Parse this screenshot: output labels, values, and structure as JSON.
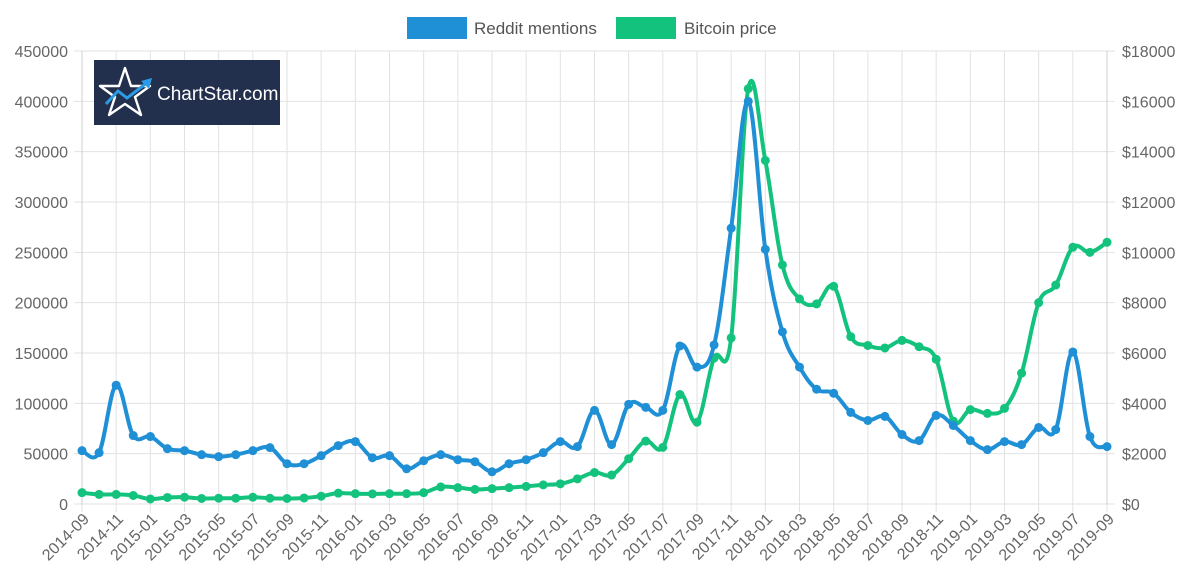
{
  "chart_data": {
    "type": "line",
    "x": [
      "2014-09",
      "2014-10",
      "2014-11",
      "2014-12",
      "2015-01",
      "2015-02",
      "2015-03",
      "2015-04",
      "2015-05",
      "2015-06",
      "2015-07",
      "2015-08",
      "2015-09",
      "2015-10",
      "2015-11",
      "2015-12",
      "2016-01",
      "2016-02",
      "2016-03",
      "2016-04",
      "2016-05",
      "2016-06",
      "2016-07",
      "2016-08",
      "2016-09",
      "2016-10",
      "2016-11",
      "2016-12",
      "2017-01",
      "2017-02",
      "2017-03",
      "2017-04",
      "2017-05",
      "2017-06",
      "2017-07",
      "2017-08",
      "2017-09",
      "2017-10",
      "2017-11",
      "2017-12",
      "2018-01",
      "2018-02",
      "2018-03",
      "2018-04",
      "2018-05",
      "2018-06",
      "2018-07",
      "2018-08",
      "2018-09",
      "2018-10",
      "2018-11",
      "2018-12",
      "2019-01",
      "2019-02",
      "2019-03",
      "2019-04",
      "2019-05",
      "2019-06",
      "2019-07",
      "2019-08",
      "2019-09"
    ],
    "x_tick_labels": [
      "2014-09",
      "2014-11",
      "2015-01",
      "2015-03",
      "2015-05",
      "2015-07",
      "2015-09",
      "2015-11",
      "2016-01",
      "2016-03",
      "2016-05",
      "2016-07",
      "2016-09",
      "2016-11",
      "2017-01",
      "2017-03",
      "2017-05",
      "2017-07",
      "2017-09",
      "2017-11",
      "2018-01",
      "2018-03",
      "2018-05",
      "2018-07",
      "2018-09",
      "2018-11",
      "2019-01",
      "2019-03",
      "2019-05",
      "2019-07",
      "2019-09"
    ],
    "series": [
      {
        "name": "Reddit mentions",
        "axis": "left",
        "color": "#1f8fd6",
        "values": [
          53000,
          51000,
          118000,
          68000,
          67000,
          55000,
          53000,
          49000,
          47000,
          49000,
          53000,
          56000,
          40000,
          40000,
          48000,
          58000,
          62000,
          46000,
          48000,
          35000,
          43000,
          49000,
          44000,
          42000,
          32000,
          40000,
          44000,
          51000,
          62000,
          57000,
          93000,
          59000,
          99000,
          96000,
          93000,
          157000,
          136000,
          158000,
          274000,
          400000,
          253000,
          171000,
          136000,
          114000,
          110000,
          91000,
          83000,
          87000,
          69000,
          63000,
          88000,
          78000,
          63000,
          54000,
          62000,
          59000,
          76000,
          74000,
          151000,
          67000,
          57000
        ]
      },
      {
        "name": "Bitcoin price",
        "axis": "right",
        "color": "#13c27d",
        "values": [
          450,
          380,
          380,
          340,
          200,
          260,
          270,
          220,
          230,
          230,
          270,
          230,
          220,
          240,
          310,
          430,
          410,
          400,
          410,
          410,
          450,
          680,
          650,
          580,
          610,
          650,
          700,
          760,
          800,
          1000,
          1250,
          1150,
          1800,
          2500,
          2250,
          4350,
          3250,
          5800,
          6600,
          16500,
          13650,
          9500,
          8150,
          7950,
          8650,
          6650,
          6300,
          6200,
          6500,
          6250,
          5750,
          3300,
          3750,
          3600,
          3800,
          5200,
          8000,
          8700,
          10200,
          10000,
          10400
        ]
      }
    ],
    "y_left": {
      "min": 0,
      "max": 450000,
      "ticks": [
        "0",
        "50000",
        "100000",
        "150000",
        "200000",
        "250000",
        "300000",
        "350000",
        "400000",
        "450000"
      ]
    },
    "y_right": {
      "min": 0,
      "max": 18000,
      "ticks": [
        "$0",
        "$2000",
        "$4000",
        "$6000",
        "$8000",
        "$10000",
        "$12000",
        "$14000",
        "$16000",
        "$18000"
      ]
    },
    "grid": true,
    "legend_position": "top-center"
  },
  "legend": [
    {
      "label": "Reddit mentions",
      "color": "#1f8fd6"
    },
    {
      "label": "Bitcoin price",
      "color": "#13c27d"
    }
  ],
  "logo": {
    "text": "ChartStar.com",
    "background": "#22304d"
  }
}
